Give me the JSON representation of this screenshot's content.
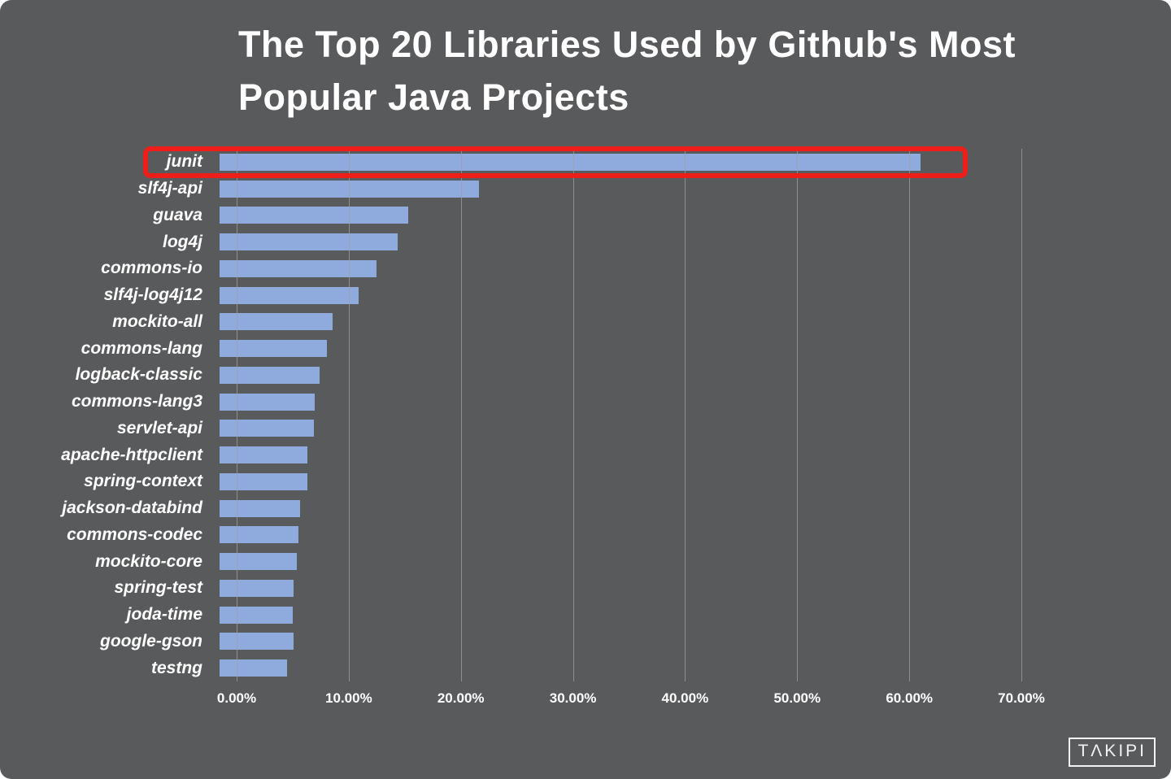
{
  "page": {
    "background_color": "#595a5c"
  },
  "logo": {
    "text": "TΛKIPI"
  },
  "chart_data": {
    "type": "bar",
    "orientation": "horizontal",
    "title": "The Top 20 Libraries Used by Github's Most Popular Java Projects",
    "categories": [
      "junit",
      "slf4j-api",
      "guava",
      "log4j",
      "commons-io",
      "slf4j-log4j12",
      "mockito-all",
      "commons-lang",
      "logback-classic",
      "commons-lang3",
      "servlet-api",
      "apache-httpclient",
      "spring-context",
      "jackson-databind",
      "commons-codec",
      "mockito-core",
      "spring-test",
      "joda-time",
      "google-gson",
      "testng"
    ],
    "values": [
      62.5,
      23.1,
      16.8,
      15.9,
      14.0,
      12.4,
      10.1,
      9.6,
      8.9,
      8.5,
      8.4,
      7.8,
      7.8,
      7.2,
      7.0,
      6.9,
      6.6,
      6.5,
      6.6,
      6.0
    ],
    "value_unit": "%",
    "x_tick_labels": [
      "0.00%",
      "10.00%",
      "20.00%",
      "30.00%",
      "40.00%",
      "50.00%",
      "60.00%",
      "70.00%"
    ],
    "xlim": [
      0,
      70
    ],
    "grid": true,
    "legend": false,
    "highlighted_category": "junit",
    "bar_color": "#8faadc",
    "highlight_color": "#ee1f1a",
    "text_color": "#ffffff"
  }
}
